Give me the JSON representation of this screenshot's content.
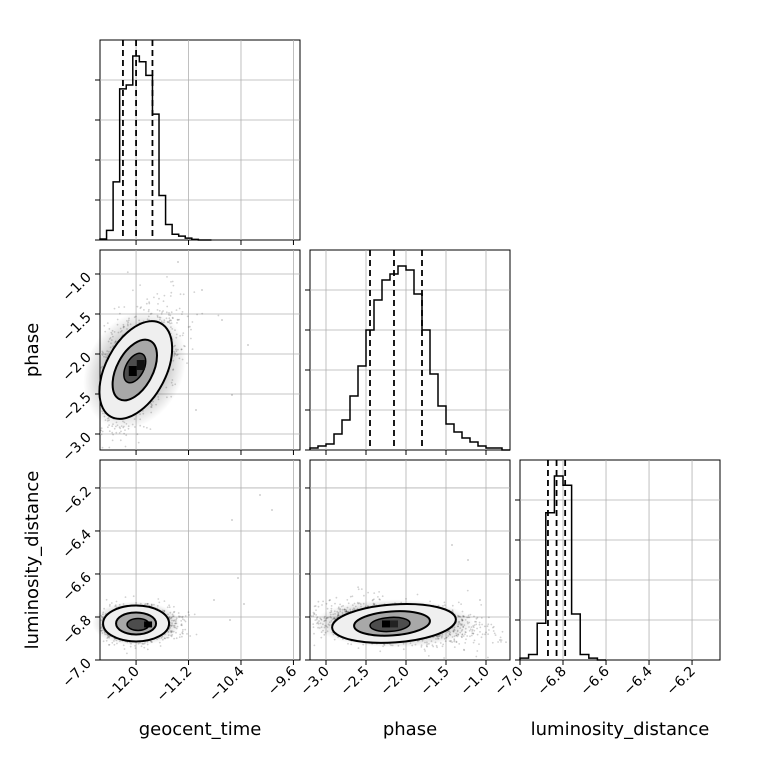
{
  "chart_data": {
    "type": "corner",
    "parameters": [
      "geocent_time",
      "phase",
      "luminosity_distance"
    ],
    "ranges": {
      "geocent_time": [
        -12.55,
        -9.5
      ],
      "phase": [
        -3.2,
        -0.7
      ],
      "luminosity_distance": [
        -7.0,
        -6.07
      ]
    },
    "ticks": {
      "geocent_time": [
        -12.0,
        -11.2,
        -10.4,
        -9.6
      ],
      "phase": [
        -3.0,
        -2.5,
        -2.0,
        -1.5,
        -1.0
      ],
      "luminosity_distance": [
        -7.0,
        -6.8,
        -6.6,
        -6.4,
        -6.2
      ]
    },
    "tick_labels": {
      "geocent_time": [
        "−12.0",
        "−11.2",
        "−10.4",
        "−9.6"
      ],
      "phase": [
        "−3.0",
        "−2.5",
        "−2.0",
        "−1.5",
        "−1.0"
      ],
      "luminosity_distance": [
        "−7.0",
        "−6.8",
        "−6.6",
        "−6.4",
        "−6.2"
      ]
    },
    "axis_labels": {
      "geocent_time": "geocent_time",
      "phase": "phase",
      "luminosity_distance": "luminosity_distance"
    },
    "quantiles": {
      "geocent_time": [
        -12.2,
        -12.0,
        -11.75
      ],
      "phase": [
        -2.45,
        -2.15,
        -1.8
      ],
      "luminosity_distance": [
        -6.87,
        -6.83,
        -6.79
      ]
    },
    "histograms": {
      "geocent_time": {
        "edges": [
          -12.55,
          -12.45,
          -12.35,
          -12.25,
          -12.15,
          -12.05,
          -11.95,
          -11.85,
          -11.75,
          -11.65,
          -11.55,
          -11.45,
          -11.35,
          -11.25,
          -11.15,
          -11.05,
          -10.95,
          -10.85
        ],
        "counts": [
          0.5,
          5,
          30,
          78,
          80,
          95,
          92,
          85,
          65,
          23,
          8,
          3,
          2,
          1,
          0.3,
          0,
          0
        ]
      },
      "phase": {
        "edges": [
          -3.2,
          -3.1,
          -3.0,
          -2.9,
          -2.8,
          -2.7,
          -2.6,
          -2.5,
          -2.4,
          -2.3,
          -2.2,
          -2.1,
          -2.0,
          -1.9,
          -1.8,
          -1.7,
          -1.6,
          -1.5,
          -1.4,
          -1.3,
          -1.2,
          -1.1,
          -1.0,
          -0.9,
          -0.8,
          -0.7
        ],
        "counts": [
          1,
          2,
          3,
          8,
          15,
          27,
          42,
          60,
          75,
          85,
          88,
          92,
          90,
          78,
          60,
          38,
          22,
          13,
          9,
          6,
          4,
          2,
          1,
          1,
          0
        ]
      },
      "luminosity_distance": {
        "edges": [
          -7.0,
          -6.96,
          -6.92,
          -6.88,
          -6.84,
          -6.8,
          -6.76,
          -6.72,
          -6.68,
          -6.64,
          -6.6
        ],
        "counts": [
          1,
          3,
          20,
          80,
          100,
          95,
          25,
          3,
          1,
          0
        ]
      }
    },
    "grid": true,
    "legend": "none"
  }
}
